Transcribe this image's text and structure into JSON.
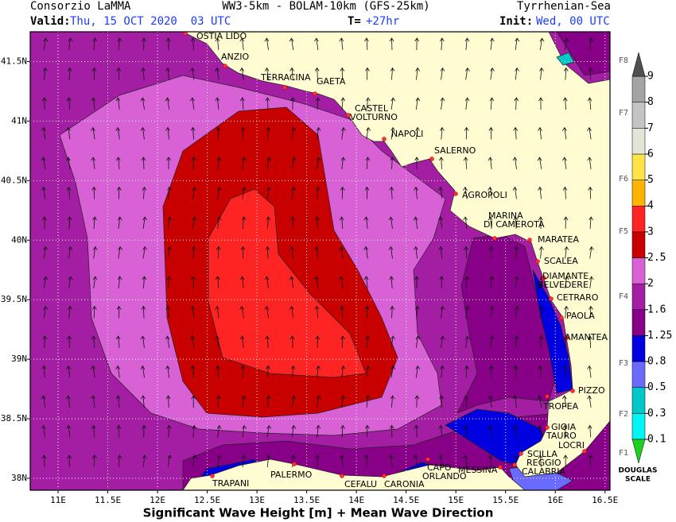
{
  "header": {
    "org": "Consorzio LaMMA",
    "model": "WW3-5km - BOLAM-10km (GFS-25km)",
    "region": "Tyrrhenian-Sea",
    "valid_label": "Valid:",
    "valid": "Thu, 15 OCT 2020  03 UTC",
    "lead_label": "T=",
    "lead": "+27hr",
    "init_label": "Init:",
    "init": "Wed, 00 UTC"
  },
  "map": {
    "lon_range": [
      10.72,
      16.55
    ],
    "lat_range": [
      41.75,
      37.9
    ],
    "lon_ticks": [
      {
        "value": 11,
        "label": "11E"
      },
      {
        "value": 11.5,
        "label": "11.5E"
      },
      {
        "value": 12,
        "label": "12E"
      },
      {
        "value": 12.5,
        "label": "12.5E"
      },
      {
        "value": 13,
        "label": "13E"
      },
      {
        "value": 13.5,
        "label": "13.5E"
      },
      {
        "value": 14,
        "label": "14E"
      },
      {
        "value": 14.5,
        "label": "14.5E"
      },
      {
        "value": 15,
        "label": "15E"
      },
      {
        "value": 15.5,
        "label": "15.5E"
      },
      {
        "value": 16,
        "label": "16E"
      },
      {
        "value": 16.5,
        "label": "16.5E"
      }
    ],
    "lat_ticks": [
      {
        "value": 41.5,
        "label": "41.5N"
      },
      {
        "value": 41,
        "label": "41N"
      },
      {
        "value": 40.5,
        "label": "40.5N"
      },
      {
        "value": 40,
        "label": "40N"
      },
      {
        "value": 39.5,
        "label": "39.5N"
      },
      {
        "value": 39,
        "label": "39N"
      },
      {
        "value": 38.5,
        "label": "38.5N"
      },
      {
        "value": 38,
        "label": "38N"
      }
    ],
    "grid": true
  },
  "cities": [
    [
      "OSTIA LIDO"
    ],
    [
      "ANZIO"
    ],
    [
      "TERRACINA"
    ],
    [
      "GAETA"
    ],
    [
      "CASTEL",
      "VOLTURNO"
    ],
    [
      "NAPOLI"
    ],
    [
      "SALERNO"
    ],
    [
      "AGROPOLI"
    ],
    [
      "MARINA",
      "DI CAMEROTA"
    ],
    [
      "MARATEA"
    ],
    [
      "SCALEA"
    ],
    [
      "DIAMANTE",
      "BELVEDERE"
    ],
    [
      "CETRARO"
    ],
    [
      "PAOLA"
    ],
    [
      "AMANTEA"
    ],
    [
      "PIZZO"
    ],
    [
      "TROPEA"
    ],
    [
      "GIOIA",
      "TAURO"
    ],
    [
      "LOCRI"
    ],
    [
      "SCILLA"
    ],
    [
      "REGGIO",
      "CALABRIA"
    ],
    [
      "MESSINA"
    ],
    [
      "CAPO",
      "ORLANDO"
    ],
    [
      "CEFALU"
    ],
    [
      "CARONIA"
    ],
    [
      "PALERMO"
    ],
    [
      "TRAPANI"
    ]
  ],
  "colorbar": {
    "levels": [
      0.1,
      0.3,
      0.5,
      0.8,
      1.25,
      1.6,
      2,
      2.5,
      3,
      4,
      5,
      6,
      7,
      8,
      9
    ],
    "colors": [
      "#20d020",
      "#00f5f5",
      "#00c8c8",
      "#6a6aff",
      "#0000e0",
      "#880088",
      "#a41ea4",
      "#d862d5",
      "#c80000",
      "#ff2424",
      "#ffb400",
      "#ffe448",
      "#e4e4d8",
      "#c4c4c4",
      "#a4a4a4",
      "#505050"
    ],
    "douglas": [
      "F1",
      "F2",
      "F3",
      "F4",
      "F5",
      "F6",
      "F7",
      "F8"
    ],
    "scale_title": [
      "DOUGLAS",
      "SCALE"
    ]
  },
  "footer": "Significant Wave Height [m] + Mean Wave Direction"
}
